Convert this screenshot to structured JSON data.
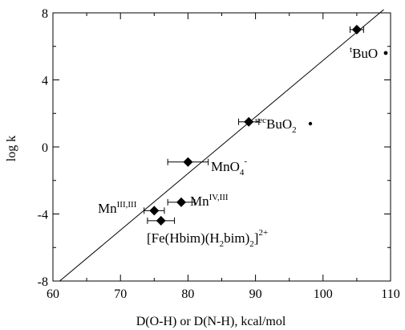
{
  "chart_data": {
    "type": "scatter",
    "xlabel": "D(O-H) or D(N-H), kcal/mol",
    "ylabel": "log k",
    "xlim": [
      60,
      110
    ],
    "ylim": [
      -8,
      8
    ],
    "x_ticks": [
      "60",
      "70",
      "80",
      "90",
      "100",
      "110"
    ],
    "y_ticks": [
      "-8",
      "-4",
      "0",
      "4",
      "8"
    ],
    "grid": false,
    "legend": "none",
    "points": [
      {
        "x": 105,
        "y": 7.0,
        "xerr": 1
      },
      {
        "x": 89,
        "y": 1.5,
        "xerr": 1.5
      },
      {
        "x": 80,
        "y": -0.9,
        "xerr": 3
      },
      {
        "x": 79,
        "y": -3.3,
        "xerr": 2
      },
      {
        "x": 75,
        "y": -3.8,
        "xerr": 1.5
      },
      {
        "x": 76,
        "y": -4.4,
        "xerr": 2
      }
    ],
    "fit_line": {
      "x1": 61,
      "y1": -8,
      "x2": 109,
      "y2": 8.2
    },
    "annotations": {
      "tbuo": {
        "sup": "t",
        "main": "BuO"
      },
      "secbuo2": {
        "sup": "sec",
        "main": "BuO",
        "sub": "2"
      },
      "mno4": {
        "main": "MnO",
        "sub": "4",
        "sup": "-"
      },
      "mn43": {
        "main": "Mn",
        "sup": "IV,III"
      },
      "mn33": {
        "main": "Mn",
        "sup": "III,III"
      },
      "fe": {
        "p1": "[Fe(Hbim)(H",
        "s1": "2",
        "p2": "bim)",
        "s2": "2",
        "p3": "]",
        "sup": "2+"
      }
    },
    "colors": {
      "marker": "#000000",
      "line": "#000000"
    }
  }
}
